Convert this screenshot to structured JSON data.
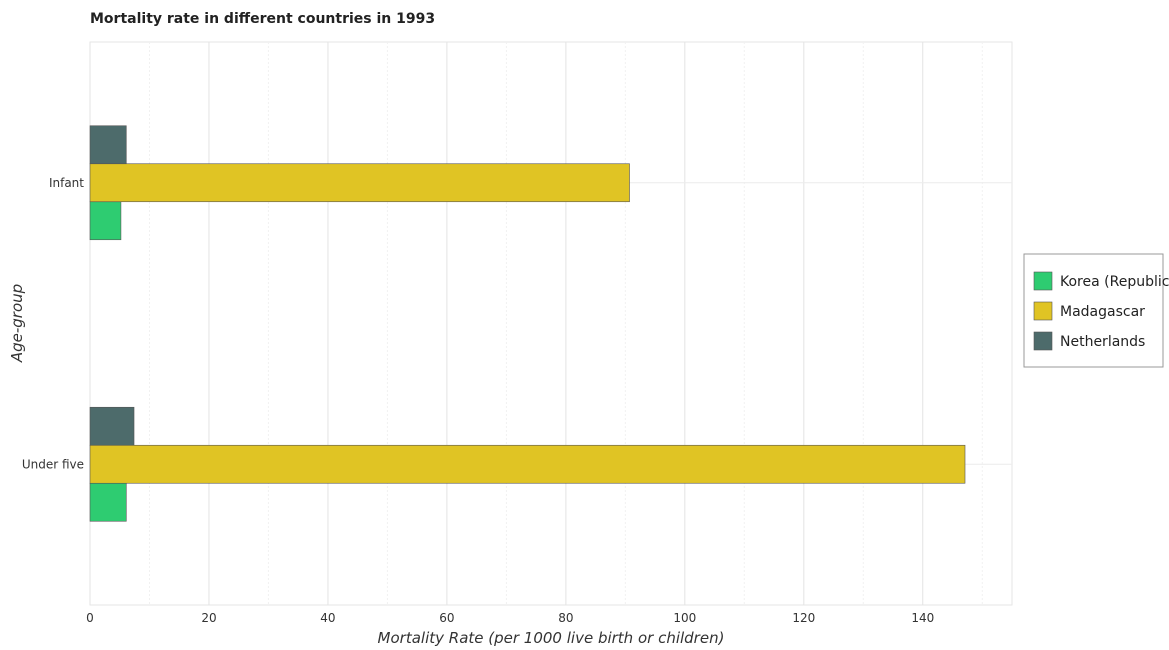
{
  "chart_data": {
    "type": "bar",
    "orientation": "horizontal",
    "title": "Mortality rate in different countries in 1993",
    "xlabel": "Mortality Rate (per 1000 live birth or children)",
    "ylabel": "Age-group",
    "categories": [
      "Infant",
      "Under five"
    ],
    "xlim": [
      0,
      155
    ],
    "xticks": [
      0,
      20,
      40,
      60,
      80,
      100,
      120,
      140
    ],
    "grid": true,
    "legend_position": "right",
    "series": [
      {
        "name": "Korea (Republic)",
        "color": "#2ecc71",
        "values": [
          5.2,
          6.1
        ]
      },
      {
        "name": "Madagascar",
        "color": "#e0c424",
        "values": [
          90.7,
          147.1
        ]
      },
      {
        "name": "Netherlands",
        "color": "#4d6b6b",
        "values": [
          6.1,
          7.4
        ]
      }
    ]
  }
}
